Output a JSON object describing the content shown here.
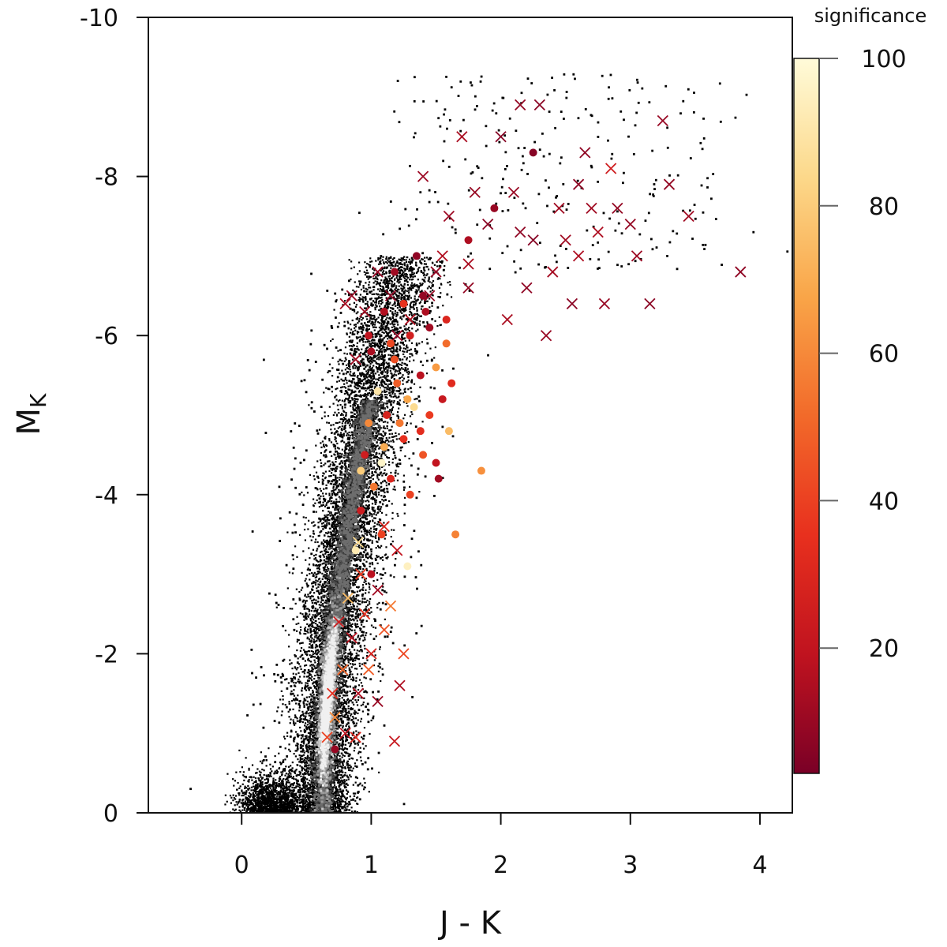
{
  "chart_data": {
    "type": "scatter",
    "title": "",
    "xlabel": "J - K",
    "ylabel": {
      "main": "M",
      "sub": "K"
    },
    "xlim": [
      -0.72,
      4.25
    ],
    "ylim": [
      0,
      -10
    ],
    "x_ticks": [
      "0",
      "1",
      "2",
      "3",
      "4"
    ],
    "x_tick_values": [
      0,
      1,
      2,
      3,
      4
    ],
    "y_ticks": [
      "0",
      "-2",
      "-4",
      "-6",
      "-8",
      "-10"
    ],
    "y_tick_values": [
      0,
      -2,
      -4,
      -6,
      -8,
      -10
    ],
    "grid": false,
    "colorbar": {
      "title": "significance",
      "range": [
        3,
        100
      ],
      "ticks": [
        "20",
        "40",
        "60",
        "80",
        "100"
      ],
      "tick_values": [
        20,
        40,
        60,
        80,
        100
      ],
      "colors": [
        "#7a0026",
        "#c0131f",
        "#e8301e",
        "#f26a2a",
        "#f9a548",
        "#fcd88a",
        "#fffbd9"
      ]
    },
    "series": [
      {
        "marker": "density",
        "color": "#000000",
        "ridge": [
          [
            0.62,
            0
          ],
          [
            0.63,
            -1
          ],
          [
            0.68,
            -2
          ],
          [
            0.76,
            -3
          ],
          [
            0.85,
            -4
          ],
          [
            0.96,
            -5
          ],
          [
            1.07,
            -6
          ],
          [
            1.22,
            -6.8
          ]
        ],
        "density_peak": [
          0.6,
          -1.45
        ]
      },
      {
        "marker": "circle",
        "points": [
          [
            0.72,
            -0.8,
            10
          ],
          [
            1.28,
            -3.1,
            95
          ],
          [
            1.02,
            -4.1,
            55
          ],
          [
            1.15,
            -4.2,
            30
          ],
          [
            1.3,
            -4.0,
            40
          ],
          [
            0.95,
            -4.5,
            25
          ],
          [
            1.1,
            -4.6,
            70
          ],
          [
            1.25,
            -4.7,
            35
          ],
          [
            1.4,
            -4.5,
            45
          ],
          [
            1.5,
            -4.4,
            20
          ],
          [
            0.98,
            -4.9,
            60
          ],
          [
            1.12,
            -5.0,
            28
          ],
          [
            1.33,
            -5.1,
            85
          ],
          [
            1.45,
            -5.0,
            38
          ],
          [
            1.55,
            -5.2,
            22
          ],
          [
            1.05,
            -5.3,
            90
          ],
          [
            1.2,
            -5.4,
            48
          ],
          [
            1.38,
            -5.5,
            18
          ],
          [
            1.5,
            -5.6,
            65
          ],
          [
            1.62,
            -5.4,
            32
          ],
          [
            1.0,
            -5.8,
            14
          ],
          [
            1.15,
            -5.9,
            42
          ],
          [
            1.3,
            -6.0,
            26
          ],
          [
            1.45,
            -6.1,
            12
          ],
          [
            1.58,
            -5.9,
            52
          ],
          [
            1.1,
            -6.3,
            16
          ],
          [
            1.25,
            -6.4,
            36
          ],
          [
            1.4,
            -6.5,
            9
          ],
          [
            1.18,
            -6.8,
            12
          ],
          [
            1.35,
            -7.0,
            8
          ],
          [
            1.75,
            -7.2,
            15
          ],
          [
            1.95,
            -7.6,
            10
          ],
          [
            2.25,
            -8.3,
            6
          ],
          [
            1.85,
            -4.3,
            62
          ],
          [
            1.65,
            -3.5,
            58
          ],
          [
            0.92,
            -3.8,
            24
          ],
          [
            1.08,
            -3.5,
            40
          ],
          [
            0.88,
            -3.3,
            92
          ],
          [
            1.0,
            -3.0,
            18
          ],
          [
            1.6,
            -4.8,
            75
          ],
          [
            0.92,
            -4.3,
            80
          ],
          [
            1.52,
            -4.2,
            12
          ],
          [
            1.22,
            -4.9,
            55
          ],
          [
            1.38,
            -4.8,
            33
          ],
          [
            1.08,
            -4.4,
            97
          ],
          [
            1.18,
            -5.7,
            44
          ],
          [
            1.42,
            -6.3,
            15
          ],
          [
            1.58,
            -6.2,
            30
          ],
          [
            0.98,
            -6.0,
            20
          ],
          [
            1.28,
            -5.2,
            68
          ]
        ]
      },
      {
        "marker": "cross",
        "points": [
          [
            0.66,
            -0.95,
            40
          ],
          [
            0.8,
            -1.0,
            20
          ],
          [
            0.88,
            -0.95,
            30
          ],
          [
            0.72,
            -1.2,
            60
          ],
          [
            0.9,
            -1.5,
            15
          ],
          [
            0.78,
            -1.8,
            50
          ],
          [
            1.0,
            -2.0,
            28
          ],
          [
            0.85,
            -2.2,
            18
          ],
          [
            1.1,
            -2.3,
            45
          ],
          [
            0.95,
            -2.5,
            35
          ],
          [
            1.15,
            -2.6,
            55
          ],
          [
            0.82,
            -2.7,
            75
          ],
          [
            1.05,
            -2.8,
            12
          ],
          [
            0.92,
            -3.0,
            38
          ],
          [
            1.2,
            -3.3,
            20
          ],
          [
            0.9,
            -3.4,
            85
          ],
          [
            1.1,
            -3.6,
            30
          ],
          [
            1.25,
            -2.0,
            42
          ],
          [
            1.05,
            -1.4,
            10
          ],
          [
            0.75,
            -2.4,
            25
          ],
          [
            1.18,
            -0.9,
            22
          ],
          [
            0.98,
            -1.8,
            48
          ],
          [
            1.22,
            -1.6,
            15
          ],
          [
            0.7,
            -1.5,
            33
          ],
          [
            0.95,
            -6.3,
            12
          ],
          [
            1.15,
            -6.5,
            8
          ],
          [
            1.3,
            -6.2,
            16
          ],
          [
            0.85,
            -6.5,
            10
          ],
          [
            1.5,
            -6.8,
            9
          ],
          [
            1.75,
            -6.9,
            14
          ],
          [
            1.9,
            -7.4,
            7
          ],
          [
            2.1,
            -7.8,
            10
          ],
          [
            2.25,
            -7.2,
            6
          ],
          [
            2.45,
            -7.6,
            12
          ],
          [
            2.6,
            -7.9,
            8
          ],
          [
            2.75,
            -7.3,
            15
          ],
          [
            2.9,
            -7.6,
            9
          ],
          [
            3.05,
            -7.0,
            11
          ],
          [
            2.2,
            -6.6,
            8
          ],
          [
            2.4,
            -6.8,
            13
          ],
          [
            2.55,
            -6.4,
            7
          ],
          [
            2.8,
            -6.4,
            10
          ],
          [
            3.3,
            -7.9,
            9
          ],
          [
            3.45,
            -7.5,
            12
          ],
          [
            3.85,
            -6.8,
            8
          ],
          [
            3.25,
            -8.7,
            10
          ],
          [
            2.3,
            -8.9,
            7
          ],
          [
            2.15,
            -8.9,
            9
          ],
          [
            1.7,
            -8.5,
            14
          ],
          [
            1.4,
            -8.0,
            11
          ],
          [
            2.0,
            -8.5,
            6
          ],
          [
            2.65,
            -8.3,
            8
          ],
          [
            2.85,
            -8.1,
            25
          ],
          [
            2.7,
            -7.6,
            12
          ],
          [
            3.15,
            -6.4,
            7
          ],
          [
            2.35,
            -6.0,
            10
          ],
          [
            2.05,
            -6.2,
            14
          ],
          [
            1.75,
            -6.6,
            9
          ],
          [
            1.6,
            -7.5,
            11
          ],
          [
            1.55,
            -7.0,
            16
          ],
          [
            2.15,
            -7.3,
            8
          ],
          [
            1.8,
            -7.8,
            10
          ],
          [
            2.5,
            -7.2,
            12
          ],
          [
            3.0,
            -7.4,
            9
          ],
          [
            2.6,
            -7.0,
            15
          ],
          [
            1.45,
            -6.5,
            10
          ],
          [
            0.8,
            -6.4,
            14
          ],
          [
            1.05,
            -6.8,
            9
          ],
          [
            0.88,
            -5.7,
            12
          ],
          [
            1.2,
            -6.0,
            8
          ]
        ]
      }
    ]
  }
}
